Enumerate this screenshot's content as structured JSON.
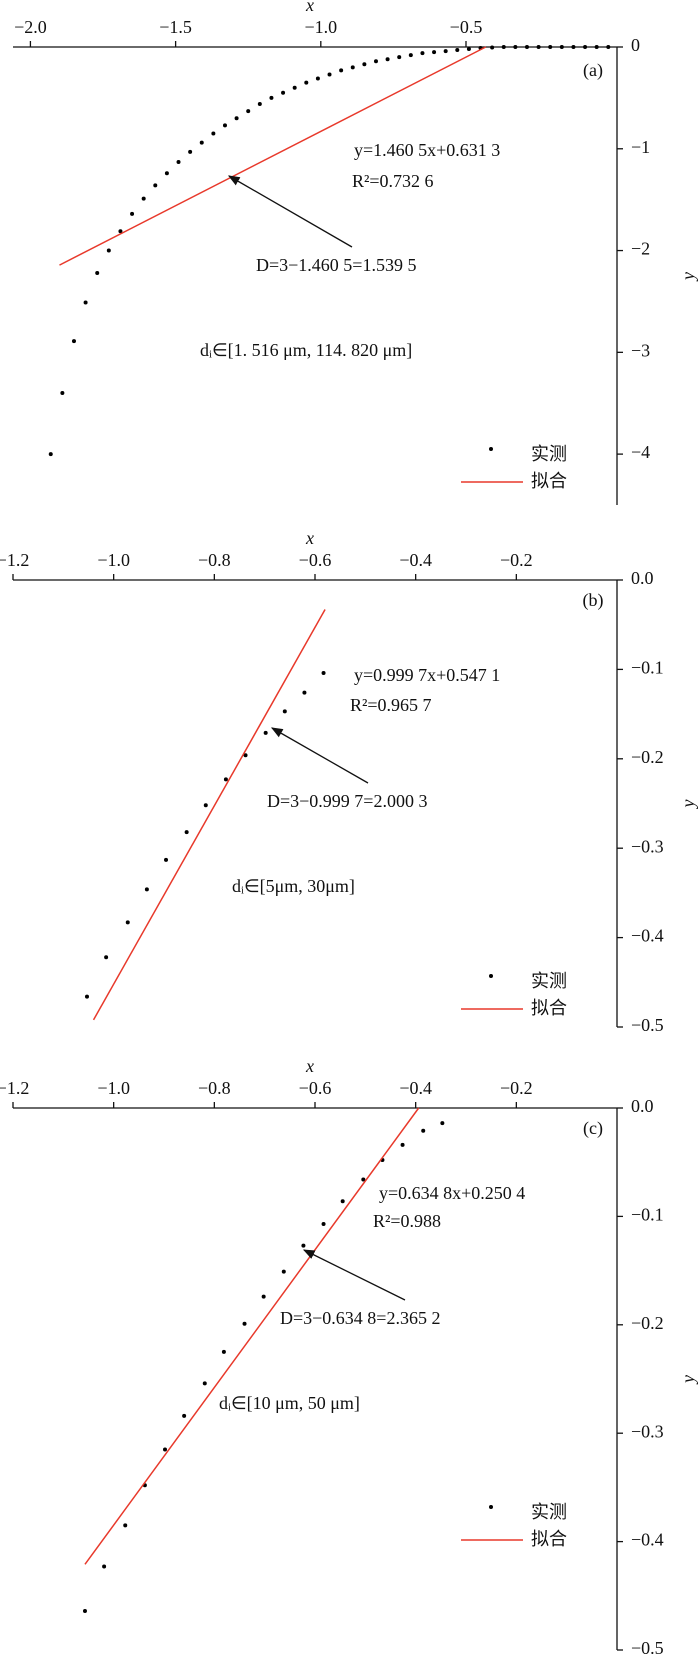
{
  "chart_data": [
    {
      "type": "scatter",
      "panel_label": "(a)",
      "x_label": "x",
      "y_label": "y",
      "xlim": [
        -2.06,
        0.02
      ],
      "ylim": [
        -4.5,
        0
      ],
      "xticks": [
        {
          "value": -2.0,
          "label": "−2.0"
        },
        {
          "value": -1.5,
          "label": "−1.5"
        },
        {
          "value": -1.0,
          "label": "−1.0"
        },
        {
          "value": -0.5,
          "label": "−0.5"
        }
      ],
      "yticks": [
        0,
        {
          "value": -1,
          "label": "−1"
        },
        {
          "value": -2,
          "label": "−2"
        },
        {
          "value": -3,
          "label": "−3"
        },
        {
          "value": -4,
          "label": "−4"
        }
      ],
      "equation": "y=1.460 5x+0.631 3",
      "r_squared": "R²=0.732 6",
      "dimension": "D=3−1.460 5=1.539 5",
      "range": "dᵢ∈[1. 516 μm, 114. 820 μm]",
      "series": [
        {
          "name": "实测",
          "type": "scatter",
          "color": "#000000",
          "x": [
            -1.93,
            -1.89,
            -1.85,
            -1.81,
            -1.77,
            -1.73,
            -1.69,
            -1.65,
            -1.61,
            -1.57,
            -1.53,
            -1.49,
            -1.45,
            -1.41,
            -1.37,
            -1.33,
            -1.29,
            -1.25,
            -1.21,
            -1.17,
            -1.13,
            -1.09,
            -1.05,
            -1.01,
            -0.97,
            -0.93,
            -0.89,
            -0.85,
            -0.81,
            -0.77,
            -0.73,
            -0.69,
            -0.65,
            -0.61,
            -0.57,
            -0.53,
            -0.49,
            -0.45,
            -0.41,
            -0.37,
            -0.33,
            -0.29,
            -0.25,
            -0.21,
            -0.17,
            -0.13,
            -0.09,
            -0.05,
            -0.01
          ],
          "values": [
            -4.0,
            -3.4,
            -2.89,
            -2.51,
            -2.22,
            -2.0,
            -1.81,
            -1.64,
            -1.49,
            -1.36,
            -1.24,
            -1.13,
            -1.03,
            -0.94,
            -0.85,
            -0.77,
            -0.7,
            -0.63,
            -0.56,
            -0.5,
            -0.45,
            -0.4,
            -0.35,
            -0.31,
            -0.27,
            -0.23,
            -0.2,
            -0.17,
            -0.14,
            -0.12,
            -0.1,
            -0.08,
            -0.06,
            -0.05,
            -0.04,
            -0.03,
            -0.02,
            -0.01,
            -0.005,
            0,
            0,
            0,
            0,
            0,
            0,
            0,
            0,
            0,
            0
          ]
        },
        {
          "name": "拟合",
          "type": "line",
          "color": "#e8392b",
          "x": [
            -1.9,
            -0.432
          ],
          "values": [
            -2.143,
            0
          ]
        }
      ]
    },
    {
      "type": "scatter",
      "panel_label": "(b)",
      "x_label": "x",
      "y_label": "y",
      "xlim": [
        -1.2,
        0
      ],
      "ylim": [
        -0.5,
        0
      ],
      "xticks": [
        {
          "value": -1.2,
          "label": "−1.2"
        },
        {
          "value": -1.0,
          "label": "−1.0"
        },
        {
          "value": -0.8,
          "label": "−0.8"
        },
        {
          "value": -0.6,
          "label": "−0.6"
        },
        {
          "value": -0.4,
          "label": "−0.4"
        },
        {
          "value": -0.2,
          "label": "−0.2"
        }
      ],
      "yticks": [
        {
          "value": 0,
          "label": "0.0"
        },
        {
          "value": -0.1,
          "label": "−0.1"
        },
        {
          "value": -0.2,
          "label": "−0.2"
        },
        {
          "value": -0.3,
          "label": "−0.3"
        },
        {
          "value": -0.4,
          "label": "−0.4"
        },
        {
          "value": -0.5,
          "label": "−0.5"
        }
      ],
      "equation": "y=0.999 7x+0.547 1",
      "r_squared": "R²=0.965 7",
      "dimension": "D=3−0.999 7=2.000 3",
      "range": "dᵢ∈[5μm, 30μm]",
      "series": [
        {
          "name": "实测",
          "type": "scatter",
          "color": "#000000",
          "x": [
            -1.053,
            -1.015,
            -0.972,
            -0.934,
            -0.896,
            -0.855,
            -0.817,
            -0.777,
            -0.738,
            -0.698,
            -0.66,
            -0.621,
            -0.583
          ],
          "values": [
            -0.466,
            -0.422,
            -0.383,
            -0.346,
            -0.313,
            -0.282,
            -0.252,
            -0.223,
            -0.196,
            -0.171,
            -0.147,
            -0.126,
            -0.104
          ]
        },
        {
          "name": "拟合",
          "type": "line",
          "color": "#e8392b",
          "x": [
            -1.04,
            -0.58
          ],
          "values": [
            -0.492,
            -0.033
          ]
        }
      ]
    },
    {
      "type": "scatter",
      "panel_label": "(c)",
      "x_label": "x",
      "y_label": "y",
      "xlim": [
        -1.2,
        0
      ],
      "ylim": [
        -0.5,
        0
      ],
      "xticks": [
        {
          "value": -1.2,
          "label": "−1.2"
        },
        {
          "value": -1.0,
          "label": "−1.0"
        },
        {
          "value": -0.8,
          "label": "−0.8"
        },
        {
          "value": -0.6,
          "label": "−0.6"
        },
        {
          "value": -0.4,
          "label": "−0.4"
        },
        {
          "value": -0.2,
          "label": "−0.2"
        }
      ],
      "yticks": [
        {
          "value": 0,
          "label": "0.0"
        },
        {
          "value": -0.1,
          "label": "−0.1"
        },
        {
          "value": -0.2,
          "label": "−0.2"
        },
        {
          "value": -0.3,
          "label": "−0.3"
        },
        {
          "value": -0.4,
          "label": "−0.4"
        },
        {
          "value": -0.5,
          "label": "−0.5"
        }
      ],
      "equation": "y=0.634 8x+0.250 4",
      "r_squared": "R²=0.988",
      "dimension": "D=3−0.634 8=2.365 2",
      "range": "dᵢ∈[10 μm, 50 μm]",
      "series": [
        {
          "name": "实测",
          "type": "scatter",
          "color": "#000000",
          "x": [
            -1.057,
            -1.019,
            -0.977,
            -0.938,
            -0.898,
            -0.86,
            -0.819,
            -0.781,
            -0.74,
            -0.702,
            -0.662,
            -0.623,
            -0.583,
            -0.545,
            -0.504,
            -0.466,
            -0.426,
            -0.385,
            -0.347
          ],
          "values": [
            -0.464,
            -0.423,
            -0.385,
            -0.348,
            -0.315,
            -0.284,
            -0.254,
            -0.225,
            -0.199,
            -0.174,
            -0.151,
            -0.127,
            -0.107,
            -0.086,
            -0.066,
            -0.048,
            -0.034,
            -0.021,
            -0.014
          ]
        },
        {
          "name": "拟合",
          "type": "line",
          "color": "#e8392b",
          "x": [
            -1.057,
            -0.394
          ],
          "values": [
            -0.421,
            0
          ]
        }
      ]
    }
  ]
}
